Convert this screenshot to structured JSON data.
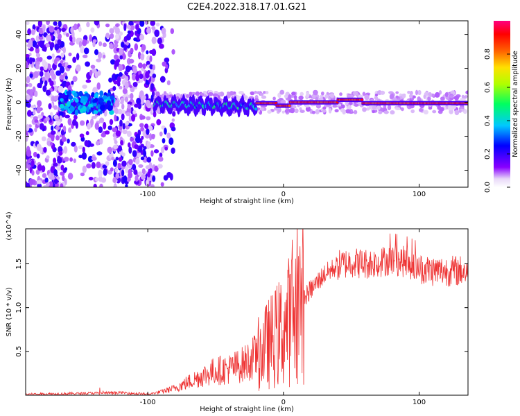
{
  "title": "C2E4.2022.318.17.01.G21",
  "colors": {
    "snr_line": "#ee3333",
    "axis": "#000000"
  },
  "chart_data": [
    {
      "type": "heatmap",
      "xlabel": "Height of straight line (km)",
      "ylabel": "Frequency (Hz)",
      "xlim": [
        -190,
        136
      ],
      "ylim": [
        -50,
        48
      ],
      "xticks": [
        -100,
        0,
        100
      ],
      "yticks": [
        -40,
        -20,
        0,
        20,
        40
      ],
      "colorbar": {
        "label": "Normalized spectral amplitude",
        "range": [
          0,
          1
        ],
        "ticks": [
          0.0,
          0.2,
          0.4,
          0.6,
          0.8
        ],
        "colormap": "rainbow (violet-blue-cyan-green-yellow-red-magenta)"
      }
    },
    {
      "type": "line",
      "xlabel": "Height of straight line (km)",
      "ylabel": "SNR (10 * v/v)",
      "ylabel_exponent": "(x10^4)",
      "xlim": [
        -190,
        136
      ],
      "ylim": [
        0,
        1.9
      ],
      "xticks": [
        -100,
        0,
        100
      ],
      "yticks": [
        0.5,
        1.0,
        1.5
      ],
      "series_trend": {
        "x": [
          -190,
          -150,
          -120,
          -100,
          -90,
          -80,
          -70,
          -60,
          -50,
          -40,
          -30,
          -20,
          -10,
          0,
          10,
          20,
          30,
          40,
          50,
          60,
          70,
          80,
          90,
          100,
          110,
          120,
          136
        ],
        "y": [
          0.01,
          0.02,
          0.03,
          0.01,
          0.04,
          0.08,
          0.15,
          0.22,
          0.28,
          0.3,
          0.35,
          0.45,
          0.6,
          0.75,
          1.0,
          1.2,
          1.38,
          1.48,
          1.52,
          1.5,
          1.52,
          1.55,
          1.52,
          1.45,
          1.42,
          1.42,
          1.42
        ]
      }
    }
  ]
}
